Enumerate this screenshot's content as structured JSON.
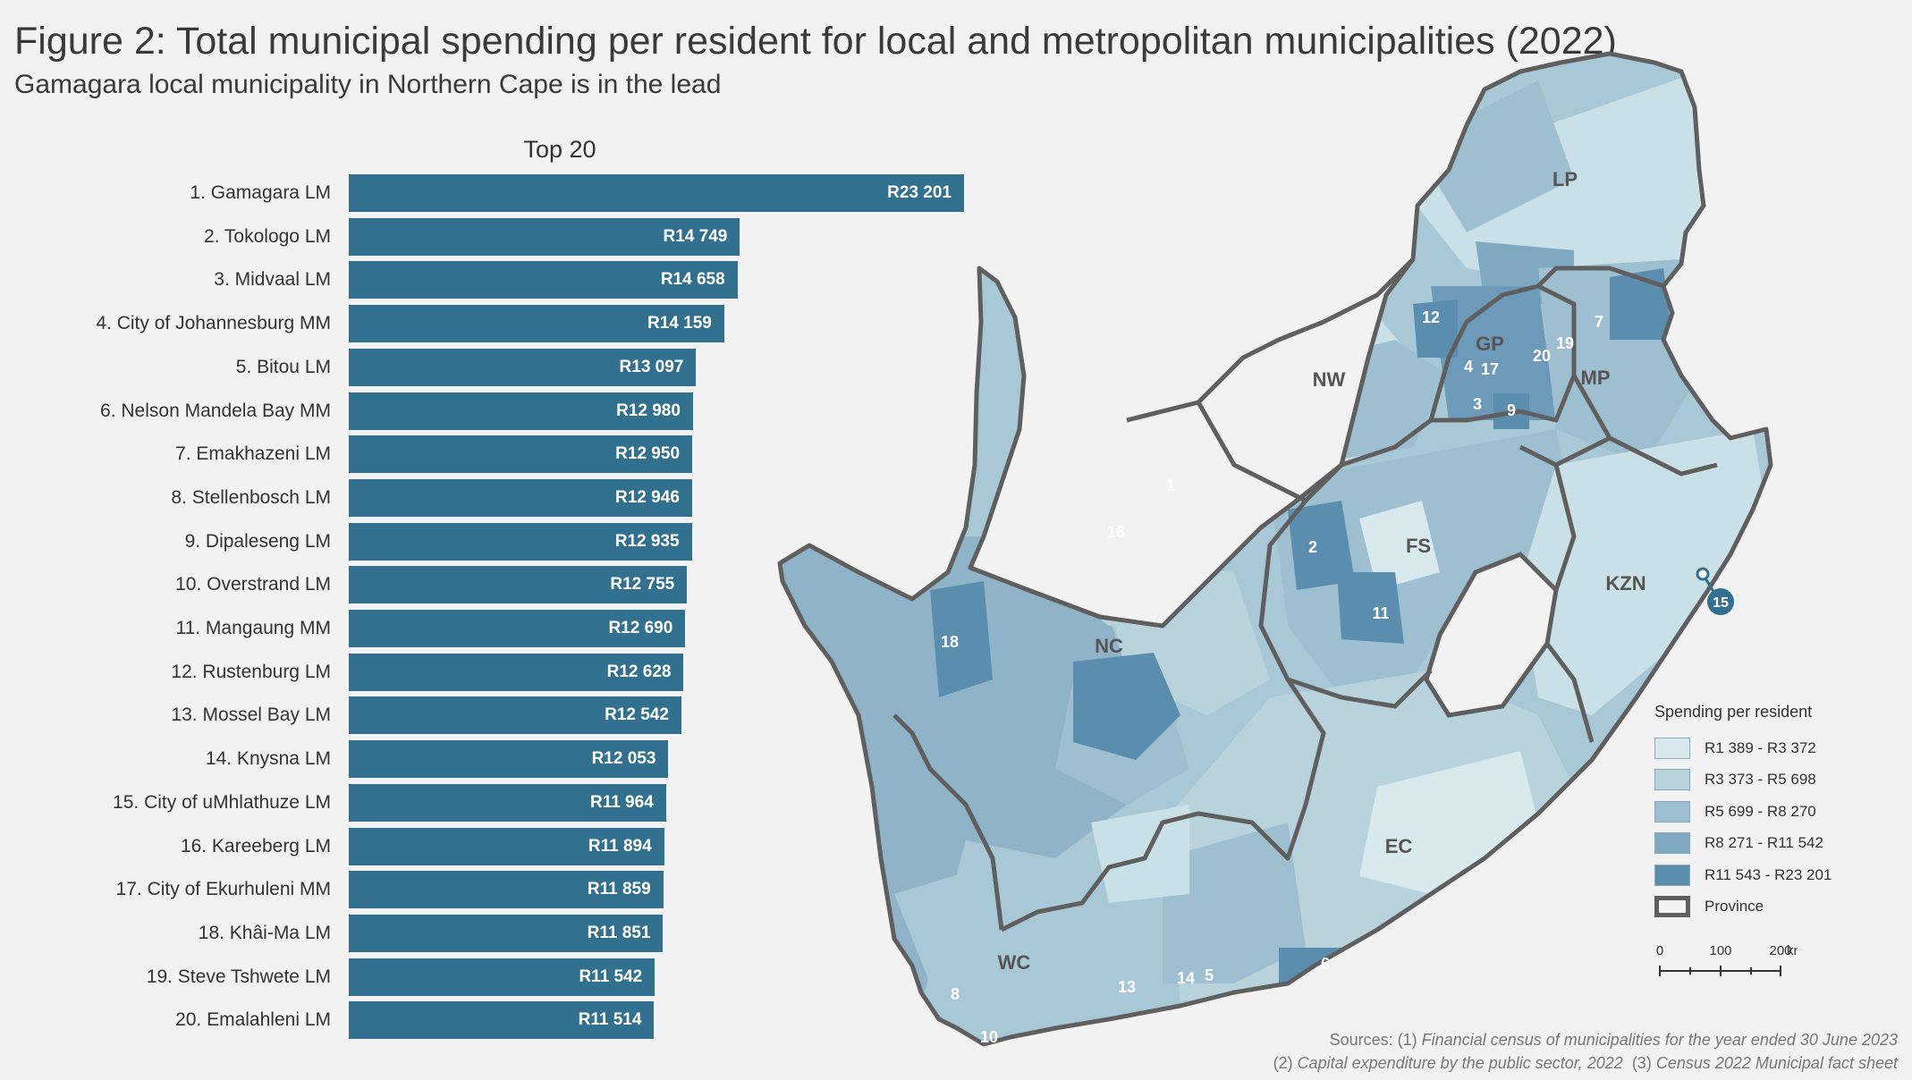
{
  "title": "Figure 2: Total municipal spending per resident for local and metropolitan municipalities (2022)",
  "subtitle": "Gamagara local municipality in Northern Cape is in the lead",
  "chart_data": {
    "type": "bar",
    "orientation": "horizontal",
    "title": "Top 20",
    "categories": [
      "1. Gamagara LM",
      "2. Tokologo LM",
      "3. Midvaal LM",
      "4. City of Johannesburg MM",
      "5. Bitou LM",
      "6. Nelson Mandela Bay MM",
      "7. Emakhazeni LM",
      "8. Stellenbosch LM",
      "9. Dipaleseng LM",
      "10. Overstrand LM",
      "11. Mangaung MM",
      "12. Rustenburg LM",
      "13. Mossel Bay LM",
      "14. Knysna LM",
      "15. City of uMhlathuze LM",
      "16. Kareeberg LM",
      "17. City of Ekurhuleni MM",
      "18. Khâi-Ma LM",
      "19. Steve Tshwete LM",
      "20. Emalahleni LM"
    ],
    "values": [
      23201,
      14749,
      14658,
      14159,
      13097,
      12980,
      12950,
      12946,
      12935,
      12755,
      12690,
      12628,
      12542,
      12053,
      11964,
      11894,
      11859,
      11851,
      11542,
      11514
    ],
    "value_labels": [
      "R23 201",
      "R14 749",
      "R14 658",
      "R14 159",
      "R13 097",
      "R12 980",
      "R12 950",
      "R12 946",
      "R12 935",
      "R12 755",
      "R12 690",
      "R12 628",
      "R12 542",
      "R12 053",
      "R11 964",
      "R11 894",
      "R11 859",
      "R11 851",
      "R11 542",
      "R11 514"
    ],
    "xlim": [
      0,
      23201
    ],
    "bar_color": "#31708e"
  },
  "map": {
    "provinces": [
      "LP",
      "GP",
      "NW",
      "MP",
      "FS",
      "KZN",
      "NC",
      "EC",
      "WC"
    ],
    "markers": [
      "1",
      "2",
      "3",
      "4",
      "5",
      "6",
      "7",
      "8",
      "9",
      "10",
      "11",
      "12",
      "13",
      "14",
      "15",
      "16",
      "17",
      "18",
      "19",
      "20"
    ]
  },
  "legend": {
    "title": "Spending per resident",
    "items": [
      {
        "label": "R1 389 - R3 372",
        "color": "#d9eaee"
      },
      {
        "label": "R3 373 - R5 698",
        "color": "#b8d3dc"
      },
      {
        "label": "R5 699 - R8 270",
        "color": "#9dbfcf"
      },
      {
        "label": "R8 271 - R11 542",
        "color": "#7ea9c1"
      },
      {
        "label": "R11 543 - R23 201",
        "color": "#5b8eae"
      }
    ],
    "province_label": "Province",
    "province_border_color": "#5f5f5f"
  },
  "scale": {
    "ticks": [
      "0",
      "100",
      "200"
    ],
    "unit": "km"
  },
  "sources": {
    "line1_prefix": "Sources: (1) ",
    "line1_italic": "Financial census of municipalities for the year ended 30 June 2023",
    "line2_prefix": "(2) ",
    "line2_italic_a": "Capital expenditure by the public sector, 2022",
    "line2_mid": "  (3) ",
    "line2_italic_b": "Census 2022 Municipal fact sheet"
  }
}
